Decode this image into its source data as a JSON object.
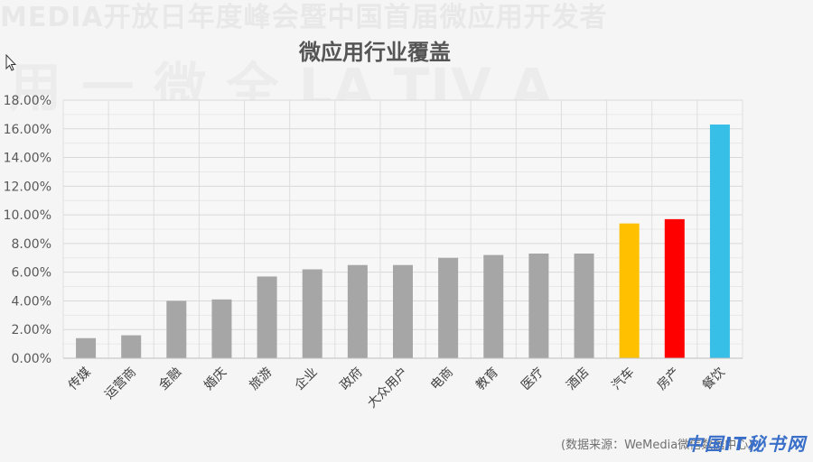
{
  "chart_data": {
    "type": "bar",
    "title": "微应用行业覆盖",
    "categories": [
      "传媒",
      "运营商",
      "金融",
      "婚庆",
      "旅游",
      "企业",
      "政府",
      "大众用户",
      "电商",
      "教育",
      "医疗",
      "酒店",
      "汽车",
      "房产",
      "餐饮"
    ],
    "values": [
      1.4,
      1.6,
      4.0,
      4.1,
      5.7,
      6.2,
      6.5,
      6.5,
      7.0,
      7.2,
      7.3,
      7.3,
      9.4,
      9.7,
      16.3
    ],
    "value_unit": "%",
    "colors": [
      "#a6a6a6",
      "#a6a6a6",
      "#a6a6a6",
      "#a6a6a6",
      "#a6a6a6",
      "#a6a6a6",
      "#a6a6a6",
      "#a6a6a6",
      "#a6a6a6",
      "#a6a6a6",
      "#a6a6a6",
      "#a6a6a6",
      "#ffc000",
      "#ff0000",
      "#38bfe8"
    ],
    "yticks": [
      "0.00%",
      "2.00%",
      "4.00%",
      "6.00%",
      "8.00%",
      "10.00%",
      "12.00%",
      "14.00%",
      "16.00%",
      "18.00%"
    ],
    "ylim": [
      0,
      18
    ],
    "grid": true,
    "xlabel": "",
    "ylabel": ""
  },
  "source_note": "(数据来源：WeMedia微信数据中心)",
  "watermark": {
    "line1": "MEDIA开放日年度峰会暨中国首届微应用开发者",
    "line2": "用 一 微 全 LA TIV A"
  },
  "logo_text": "中国IT秘书网",
  "cursor_icon": "arrow-cursor-icon"
}
